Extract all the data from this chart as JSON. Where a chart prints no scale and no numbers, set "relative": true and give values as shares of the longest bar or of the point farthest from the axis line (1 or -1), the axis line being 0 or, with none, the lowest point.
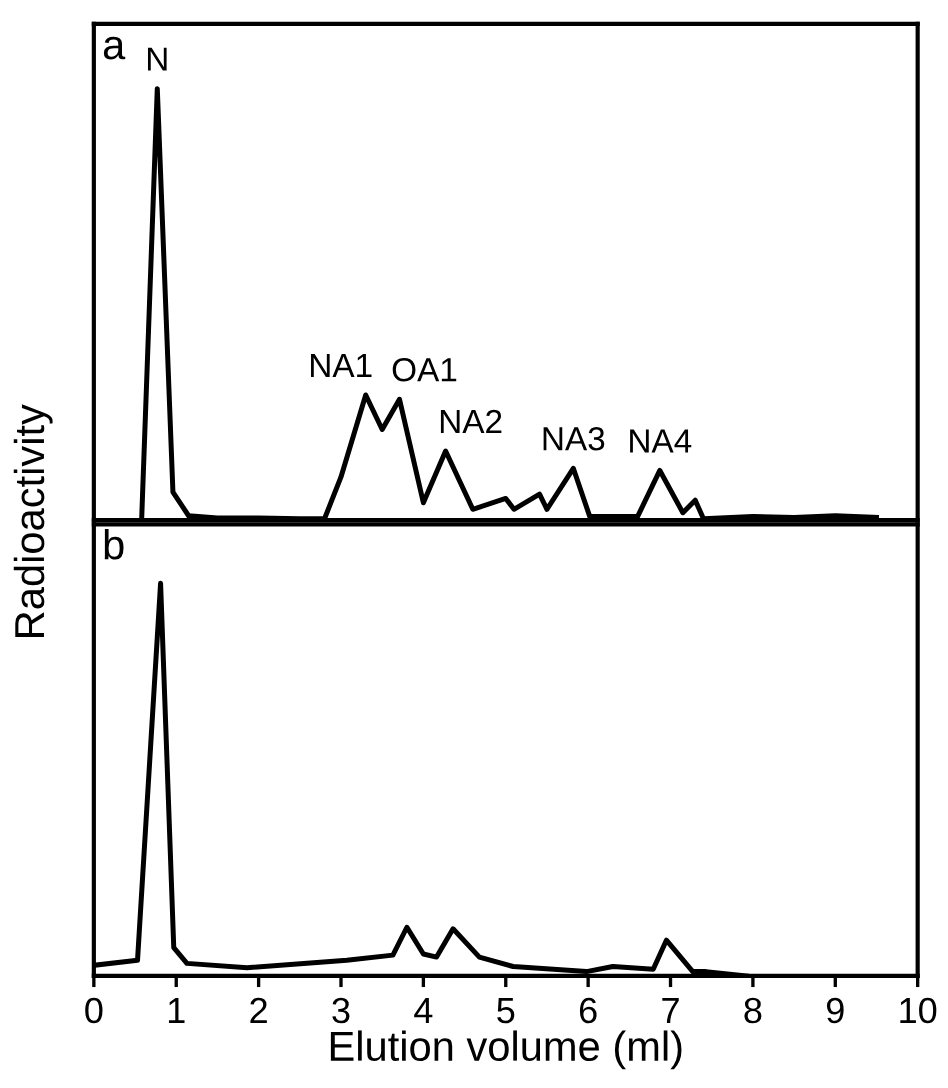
{
  "chart_data": [
    {
      "type": "line",
      "relative": true,
      "xlim": [
        0,
        10
      ],
      "tick_labels": false,
      "ylabel": "Radioactivity",
      "annotations": [
        "a",
        {
          "text": "N",
          "x": 0.77,
          "y": 1
        },
        {
          "text": "NA1",
          "x": 3.3,
          "y": 0.29
        },
        {
          "text": "OA1",
          "x": 3.71,
          "y": 0.28
        },
        {
          "text": "NA2",
          "x": 4.27,
          "y": 0.16
        },
        {
          "text": "NA3",
          "x": 5.82,
          "y": 0.12
        },
        {
          "text": "NA4",
          "x": 6.87,
          "y": 0.115
        }
      ],
      "series": [
        {
          "color": "#000000",
          "x": [
            0.58,
            0.77,
            0.96,
            1.15,
            1.5,
            2.0,
            2.5,
            2.8,
            3.0,
            3.3,
            3.5,
            3.71,
            4.0,
            4.27,
            4.6,
            5.0,
            5.1,
            5.41,
            5.5,
            5.82,
            6.02,
            6.6,
            6.87,
            7.15,
            7.3,
            7.4,
            8.0,
            8.5,
            9.0,
            9.5
          ],
          "values": [
            0,
            1,
            0.065,
            0.01,
            0.005,
            0.005,
            0.003,
            0.003,
            0.1,
            0.29,
            0.21,
            0.28,
            0.04,
            0.16,
            0.025,
            0.05,
            0.025,
            0.06,
            0.025,
            0.12,
            0.008,
            0.008,
            0.115,
            0.017,
            0.046,
            0.003,
            0.008,
            0.006,
            0.01,
            0.006
          ]
        }
      ]
    },
    {
      "type": "line",
      "relative": true,
      "xlim": [
        0,
        10
      ],
      "xticks": [
        0,
        1,
        2,
        3,
        4,
        5,
        6,
        7,
        8,
        9,
        10
      ],
      "tick_labels": "x",
      "xlabel": "Elution volume (ml)",
      "annotations": [
        "b"
      ],
      "series": [
        {
          "color": "#000000",
          "x": [
            0,
            0.53,
            0.81,
            0.97,
            1.13,
            1.86,
            3.07,
            3.63,
            3.8,
            4.0,
            4.16,
            4.36,
            4.68,
            5.09,
            5.98,
            6.3,
            6.79,
            6.95,
            7.27,
            7.43,
            7.92
          ],
          "values": [
            0.027,
            0.04,
            1,
            0.072,
            0.032,
            0.021,
            0.04,
            0.053,
            0.124,
            0.056,
            0.048,
            0.12,
            0.048,
            0.024,
            0.011,
            0.024,
            0.017,
            0.091,
            0.011,
            0.011,
            0
          ]
        }
      ]
    }
  ]
}
